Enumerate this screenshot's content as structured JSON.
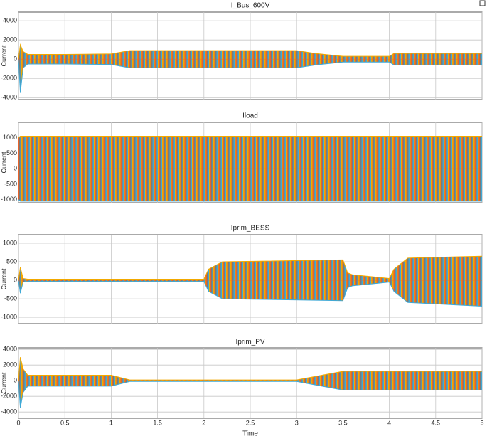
{
  "chart_data": [
    {
      "type": "envelope",
      "title": "I_Bus_600V",
      "ylabel": "Current",
      "xlim": [
        0,
        5
      ],
      "xticks": [
        0,
        0.5,
        1,
        1.5,
        2,
        2.5,
        3,
        3.5,
        4,
        4.5,
        5
      ],
      "ylim": [
        -4200,
        4900
      ],
      "yticks": [
        -4000,
        -2000,
        0,
        2000,
        4000
      ],
      "grid": true,
      "x": [
        0,
        0.02,
        0.05,
        0.1,
        0.5,
        1.0,
        1.2,
        1.5,
        2.0,
        2.5,
        3.0,
        3.2,
        3.5,
        3.6,
        4.0,
        4.05,
        5.0
      ],
      "upper": [
        0,
        1500,
        800,
        500,
        500,
        550,
        900,
        900,
        900,
        900,
        900,
        600,
        300,
        300,
        300,
        600,
        600
      ],
      "lower": [
        0,
        -3500,
        -900,
        -500,
        -500,
        -550,
        -900,
        -900,
        -900,
        -900,
        -900,
        -600,
        -300,
        -300,
        -300,
        -600,
        -600
      ],
      "colors": [
        "#f2a900",
        "#e8632a",
        "#7a7a7a",
        "#3fa9d6"
      ]
    },
    {
      "type": "envelope",
      "title": "Iload",
      "ylabel": "Current",
      "xlim": [
        0,
        5
      ],
      "xticks": [
        0,
        0.5,
        1,
        1.5,
        2,
        2.5,
        3,
        3.5,
        4,
        4.5,
        5
      ],
      "ylim": [
        -1100,
        1500
      ],
      "yticks": [
        -1000,
        -500,
        0,
        500,
        1000
      ],
      "grid": true,
      "x": [
        0,
        0.02,
        5.0
      ],
      "upper": [
        1000,
        1050,
        1050
      ],
      "lower": [
        -1000,
        -1050,
        -1050
      ],
      "colors": [
        "#f2a900",
        "#e8632a",
        "#7a7a7a",
        "#3fa9d6"
      ]
    },
    {
      "type": "envelope",
      "title": "Iprim_BESS",
      "ylabel": "Current",
      "xlim": [
        0,
        5
      ],
      "xticks": [
        0,
        0.5,
        1,
        1.5,
        2,
        2.5,
        3,
        3.5,
        4,
        4.5,
        5
      ],
      "ylim": [
        -1170,
        1230
      ],
      "yticks": [
        -1000,
        -500,
        0,
        500,
        1000
      ],
      "grid": true,
      "x": [
        0,
        0.02,
        0.05,
        0.1,
        2.0,
        2.05,
        2.2,
        3.5,
        3.55,
        3.6,
        4.0,
        4.05,
        4.2,
        5.0
      ],
      "upper": [
        0,
        350,
        50,
        30,
        30,
        300,
        500,
        550,
        200,
        150,
        50,
        300,
        600,
        650
      ],
      "lower": [
        0,
        -350,
        -50,
        -30,
        -30,
        -300,
        -500,
        -550,
        -200,
        -150,
        -50,
        -300,
        -600,
        -700
      ],
      "colors": [
        "#f2a900",
        "#e8632a",
        "#7a7a7a",
        "#3fa9d6"
      ]
    },
    {
      "type": "envelope",
      "title": "Iprim_PV",
      "ylabel": "Current",
      "xlabel": "Time",
      "xlim": [
        0,
        5
      ],
      "xticks": [
        0,
        0.5,
        1,
        1.5,
        2,
        2.5,
        3,
        3.5,
        4,
        4.5,
        5
      ],
      "ylim": [
        -4800,
        4200
      ],
      "yticks": [
        -4000,
        -2000,
        0,
        2000,
        4000
      ],
      "grid": true,
      "x": [
        0,
        0.02,
        0.05,
        0.1,
        0.2,
        1.0,
        1.2,
        2.0,
        3.0,
        3.5,
        5.0
      ],
      "upper": [
        0,
        3000,
        1500,
        700,
        700,
        700,
        100,
        100,
        100,
        1200,
        1200
      ],
      "lower": [
        0,
        -3500,
        -1500,
        -700,
        -700,
        -700,
        -100,
        -100,
        -100,
        -1200,
        -1200
      ],
      "colors": [
        "#f2a900",
        "#e8632a",
        "#7a7a7a",
        "#3fa9d6"
      ]
    }
  ]
}
